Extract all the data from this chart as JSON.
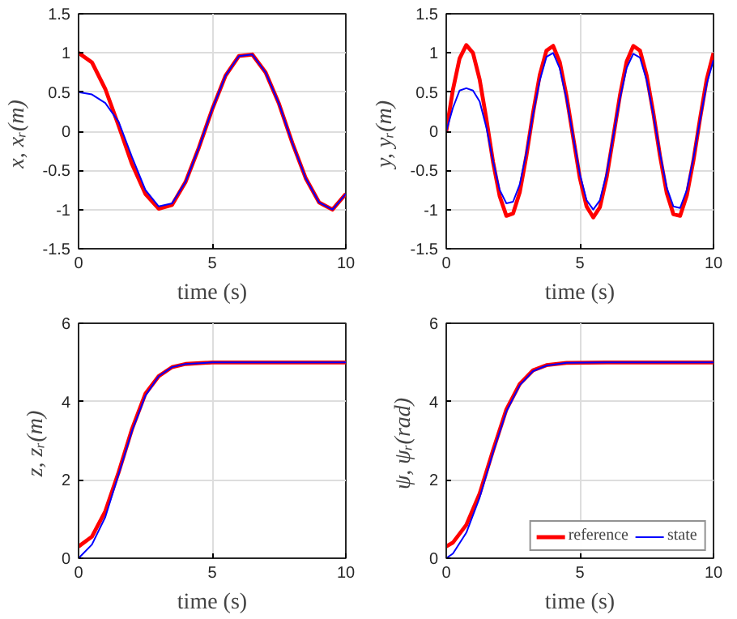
{
  "chart_data": [
    {
      "type": "line",
      "xlabel": "time (s)",
      "ylabel": "x,  xᵣ(m)",
      "xlim": [
        0,
        10
      ],
      "ylim": [
        -1.5,
        1.5
      ],
      "xticks": [
        0,
        5,
        10
      ],
      "yticks": [
        -1.5,
        -1,
        -0.5,
        0,
        0.5,
        1,
        1.5
      ],
      "grid": true,
      "series": [
        {
          "color": "#ff0000",
          "x": [
            0,
            0.5,
            1,
            1.5,
            2,
            2.5,
            3,
            3.5,
            4,
            4.5,
            5,
            5.5,
            6,
            6.5,
            7,
            7.5,
            8,
            8.5,
            9,
            9.5,
            10
          ],
          "values": [
            1,
            0.88,
            0.54,
            0.07,
            -0.42,
            -0.8,
            -0.99,
            -0.94,
            -0.65,
            -0.21,
            0.28,
            0.71,
            0.96,
            0.98,
            0.75,
            0.35,
            -0.15,
            -0.6,
            -0.91,
            -1,
            -0.8
          ]
        },
        {
          "color": "#0000ff",
          "x": [
            0,
            0.5,
            1,
            1.5,
            2,
            2.5,
            3,
            3.5,
            4,
            4.5,
            5,
            5.5,
            6,
            6.5,
            7,
            7.5,
            8,
            8.5,
            9,
            9.5,
            10
          ],
          "values": [
            0.5,
            0.47,
            0.36,
            0.12,
            -0.33,
            -0.75,
            -0.96,
            -0.92,
            -0.65,
            -0.21,
            0.28,
            0.71,
            0.96,
            0.98,
            0.75,
            0.35,
            -0.15,
            -0.6,
            -0.91,
            -1,
            -0.8
          ]
        }
      ]
    },
    {
      "type": "line",
      "xlabel": "time (s)",
      "ylabel": "y,  yᵣ(m)",
      "xlim": [
        0,
        10
      ],
      "ylim": [
        -1.5,
        1.5
      ],
      "xticks": [
        0,
        5,
        10
      ],
      "yticks": [
        -1.5,
        -1,
        -0.5,
        0,
        0.5,
        1,
        1.5
      ],
      "grid": true,
      "series": [
        {
          "color": "#ff0000",
          "x": [
            0,
            0.25,
            0.5,
            0.75,
            1,
            1.25,
            1.5,
            1.75,
            2,
            2.25,
            2.5,
            2.75,
            3,
            3.25,
            3.5,
            3.75,
            4,
            4.25,
            4.5,
            4.75,
            5,
            5.25,
            5.5,
            5.75,
            6,
            6.25,
            6.5,
            6.75,
            7,
            7.25,
            7.5,
            7.75,
            8,
            8.25,
            8.5,
            8.75,
            9,
            9.25,
            9.5,
            9.75,
            10
          ],
          "values": [
            0,
            0.53,
            0.93,
            1.1,
            1,
            0.66,
            0.16,
            -0.39,
            -0.83,
            -1.08,
            -1.05,
            -0.78,
            -0.31,
            0.24,
            0.72,
            1.03,
            1.09,
            0.88,
            0.45,
            -0.08,
            -0.6,
            -0.96,
            -1.1,
            -0.97,
            -0.59,
            -0.07,
            0.46,
            0.89,
            1.09,
            1.03,
            0.71,
            0.23,
            -0.32,
            -0.79,
            -1.06,
            -1.08,
            -0.82,
            -0.37,
            0.17,
            0.67,
            1
          ]
        },
        {
          "color": "#0000ff",
          "x": [
            0,
            0.25,
            0.5,
            0.75,
            1,
            1.25,
            1.5,
            1.75,
            2,
            2.25,
            2.5,
            2.75,
            3,
            3.25,
            3.5,
            3.75,
            4,
            4.25,
            4.5,
            4.75,
            5,
            5.25,
            5.5,
            5.75,
            6,
            6.25,
            6.5,
            6.75,
            7,
            7.25,
            7.5,
            7.75,
            8,
            8.25,
            8.5,
            8.75,
            9,
            9.25,
            9.5,
            9.75,
            10
          ],
          "values": [
            0,
            0.3,
            0.52,
            0.55,
            0.52,
            0.38,
            0.05,
            -0.38,
            -0.75,
            -0.92,
            -0.9,
            -0.68,
            -0.27,
            0.22,
            0.65,
            0.95,
            1,
            0.8,
            0.41,
            -0.07,
            -0.55,
            -0.88,
            -1,
            -0.88,
            -0.54,
            -0.06,
            0.42,
            0.81,
            0.99,
            0.94,
            0.65,
            0.21,
            -0.29,
            -0.72,
            -0.96,
            -0.98,
            -0.75,
            -0.34,
            0.15,
            0.61,
            0.91
          ]
        }
      ]
    },
    {
      "type": "line",
      "xlabel": "time (s)",
      "ylabel": "z,  zᵣ(m)",
      "xlim": [
        0,
        10
      ],
      "ylim": [
        0,
        6
      ],
      "xticks": [
        0,
        5,
        10
      ],
      "yticks": [
        0,
        2,
        4,
        6
      ],
      "grid": true,
      "series": [
        {
          "color": "#ff0000",
          "x": [
            0,
            0.5,
            1,
            1.5,
            2,
            2.5,
            3,
            3.5,
            4,
            5,
            10
          ],
          "values": [
            0.3,
            0.55,
            1.2,
            2.2,
            3.3,
            4.2,
            4.65,
            4.88,
            4.96,
            5,
            5
          ]
        },
        {
          "color": "#0000ff",
          "x": [
            0,
            0.5,
            1,
            1.5,
            2,
            2.5,
            3,
            3.5,
            4,
            5,
            10
          ],
          "values": [
            0,
            0.35,
            1.05,
            2.15,
            3.25,
            4.15,
            4.65,
            4.88,
            4.96,
            5,
            5
          ]
        }
      ]
    },
    {
      "type": "line",
      "xlabel": "time (s)",
      "ylabel": "ψ,  ψᵣ(rad)",
      "xlim": [
        0,
        10
      ],
      "ylim": [
        0,
        6
      ],
      "xticks": [
        0,
        5,
        10
      ],
      "yticks": [
        0,
        2,
        4,
        6
      ],
      "grid": true,
      "legend": "bottom right",
      "series": [
        {
          "name": "reference",
          "color": "#ff0000",
          "x": [
            0,
            0.25,
            0.75,
            1.25,
            1.75,
            2.25,
            2.75,
            3.25,
            3.75,
            4.5,
            6,
            10
          ],
          "values": [
            0.3,
            0.4,
            0.85,
            1.65,
            2.75,
            3.8,
            4.45,
            4.8,
            4.93,
            4.99,
            5,
            5
          ]
        },
        {
          "name": "state",
          "color": "#0000ff",
          "x": [
            0,
            0.25,
            0.75,
            1.25,
            1.75,
            2.25,
            2.75,
            3.25,
            3.75,
            4.5,
            6,
            10
          ],
          "values": [
            0,
            0.12,
            0.65,
            1.55,
            2.7,
            3.75,
            4.42,
            4.78,
            4.92,
            4.99,
            5,
            5
          ]
        }
      ]
    }
  ]
}
